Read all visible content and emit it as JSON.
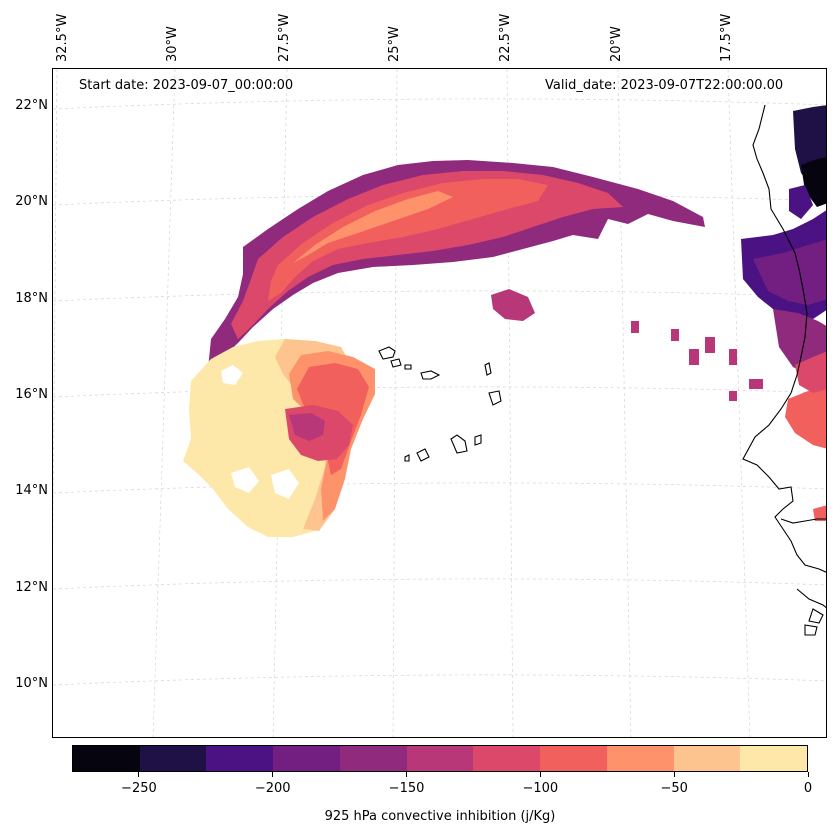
{
  "map": {
    "start_date": "Start date: 2023-09-07_00:00:00",
    "valid_date": "Valid_date: 2023-09-07T22:00:00.00",
    "variable": "925 hPa convective inhibition",
    "units": "j/Kg"
  },
  "longitude_labels": [
    "32.5°W",
    "30°W",
    "27.5°W",
    "25°W",
    "22.5°W",
    "20°W",
    "17.5°W"
  ],
  "latitude_labels": [
    "22°N",
    "20°N",
    "18°N",
    "16°N",
    "14°N",
    "12°N",
    "10°N"
  ],
  "colorbar": {
    "title": "925 hPa convective inhibition (j/Kg)",
    "min": -275,
    "max": 0,
    "step": 25,
    "colors": [
      "#05040f",
      "#1f1146",
      "#4b1283",
      "#721f81",
      "#8f2a7c",
      "#b73779",
      "#dc4869",
      "#f1605d",
      "#fe936b",
      "#fec48f",
      "#fde8a9"
    ],
    "ticks": [
      -250,
      -200,
      -150,
      -100,
      -50,
      0
    ],
    "tick_labels": [
      "−250",
      "−200",
      "−150",
      "−100",
      "−50",
      "0"
    ]
  },
  "colors": {
    "coastline": "#000000",
    "gridline": "#d0d0d0",
    "background": "#ffffff"
  }
}
